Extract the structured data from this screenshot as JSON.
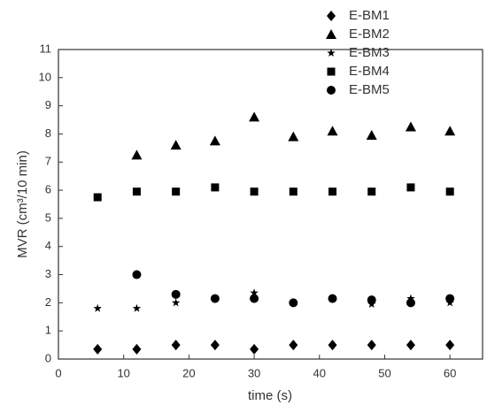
{
  "chart_data": {
    "type": "scatter",
    "xlabel": "time (s)",
    "ylabel": "MVR (cm³/10 min)",
    "x": [
      6,
      12,
      18,
      24,
      30,
      36,
      42,
      48,
      54,
      60
    ],
    "series": [
      {
        "name": "E-BM1",
        "color": "#000000",
        "marker": "diamond",
        "values": [
          0.35,
          0.35,
          0.5,
          0.5,
          0.35,
          0.5,
          0.5,
          0.5,
          0.5,
          0.5
        ]
      },
      {
        "name": "E-BM2",
        "color": "#000000",
        "marker": "triangle",
        "values": [
          null,
          7.25,
          7.6,
          7.75,
          8.6,
          7.9,
          8.1,
          7.95,
          8.25,
          8.1
        ]
      },
      {
        "name": "E-BM3",
        "color": "#000000",
        "marker": "star",
        "values": [
          1.8,
          1.8,
          2.0,
          2.15,
          2.35,
          2.0,
          2.15,
          1.95,
          2.15,
          2.0
        ]
      },
      {
        "name": "E-BM4",
        "color": "#000000",
        "marker": "square",
        "values": [
          5.75,
          5.95,
          5.95,
          6.1,
          5.95,
          5.95,
          5.95,
          5.95,
          6.1,
          5.95
        ]
      },
      {
        "name": "E-BM5",
        "color": "#000000",
        "marker": "circle",
        "values": [
          null,
          3.0,
          2.3,
          2.15,
          2.15,
          2.0,
          2.15,
          2.1,
          2.0,
          2.15
        ]
      }
    ],
    "xlim": [
      0,
      65
    ],
    "xticks": [
      0,
      10,
      20,
      30,
      40,
      50,
      60
    ],
    "ylim": [
      0,
      11
    ],
    "yticks": [
      0,
      1,
      2,
      3,
      4,
      5,
      6,
      7,
      8,
      9,
      10,
      11
    ]
  }
}
